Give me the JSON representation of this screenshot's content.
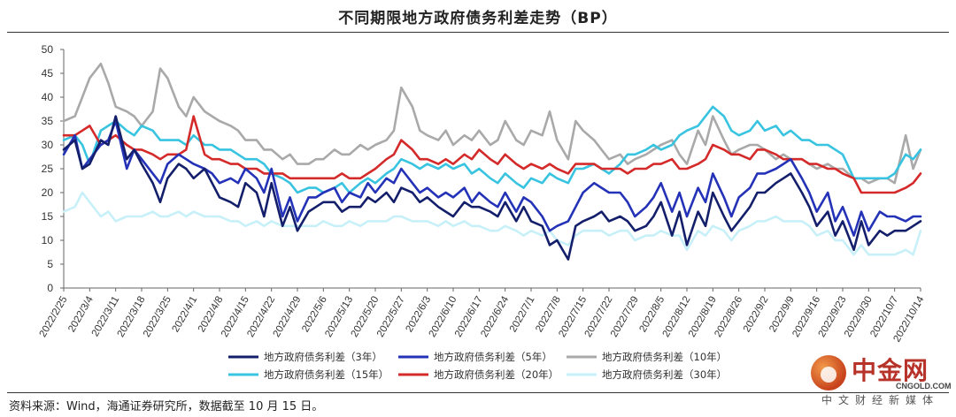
{
  "header": {
    "title": "不同期限地方政府债务利差走势（BP）"
  },
  "footer": {
    "source": "资料来源：Wind，海通证券研究所，数据截至 10 月 15 日。"
  },
  "watermark": {
    "name": "中金网",
    "domain": "CNGOLD.COM",
    "tagline": "中文财经新媒体"
  },
  "colors": {
    "s3": "#141f6b",
    "s5": "#2432b8",
    "s10": "#a9a9a9",
    "s15": "#38c4e0",
    "s20": "#d42a2a",
    "s30": "#c8f0f8"
  },
  "chart_data": {
    "type": "line",
    "title": "不同期限地方政府债务利差走势（BP）",
    "xlabel": "",
    "ylabel": "",
    "ylim": [
      0,
      50
    ],
    "yticks": [
      0,
      5,
      10,
      15,
      20,
      25,
      30,
      35,
      40,
      45,
      50
    ],
    "grid": false,
    "legend_position": "bottom",
    "xticks": [
      "2022/2/25",
      "2022/3/4",
      "2022/3/11",
      "2022/3/18",
      "2022/3/25",
      "2022/4/1",
      "2022/4/8",
      "2022/4/15",
      "2022/4/22",
      "2022/4/29",
      "2022/5/6",
      "2022/5/13",
      "2022/5/20",
      "2022/5/27",
      "2022/6/3",
      "2022/6/10",
      "2022/6/17",
      "2022/6/24",
      "2022/7/1",
      "2022/7/8",
      "2022/7/15",
      "2022/7/22",
      "2022/7/29",
      "2022/8/5",
      "2022/8/12",
      "2022/8/19",
      "2022/8/26",
      "2022/9/2",
      "2022/9/9",
      "2022/9/16",
      "2022/9/23",
      "2022/9/30",
      "2022/10/7",
      "2022/10/14"
    ],
    "x": [
      "2022/2/25",
      "2022/2/28",
      "2022/3/2",
      "2022/3/4",
      "2022/3/7",
      "2022/3/9",
      "2022/3/11",
      "2022/3/14",
      "2022/3/16",
      "2022/3/18",
      "2022/3/21",
      "2022/3/23",
      "2022/3/25",
      "2022/3/28",
      "2022/3/30",
      "2022/4/1",
      "2022/4/4",
      "2022/4/6",
      "2022/4/8",
      "2022/4/11",
      "2022/4/13",
      "2022/4/15",
      "2022/4/18",
      "2022/4/20",
      "2022/4/22",
      "2022/4/25",
      "2022/4/27",
      "2022/4/29",
      "2022/5/2",
      "2022/5/4",
      "2022/5/6",
      "2022/5/9",
      "2022/5/11",
      "2022/5/13",
      "2022/5/16",
      "2022/5/18",
      "2022/5/20",
      "2022/5/23",
      "2022/5/25",
      "2022/5/27",
      "2022/5/30",
      "2022/6/1",
      "2022/6/3",
      "2022/6/6",
      "2022/6/8",
      "2022/6/10",
      "2022/6/13",
      "2022/6/15",
      "2022/6/17",
      "2022/6/20",
      "2022/6/22",
      "2022/6/24",
      "2022/6/27",
      "2022/6/29",
      "2022/7/1",
      "2022/7/4",
      "2022/7/6",
      "2022/7/8",
      "2022/7/11",
      "2022/7/13",
      "2022/7/15",
      "2022/7/18",
      "2022/7/20",
      "2022/7/22",
      "2022/7/25",
      "2022/7/27",
      "2022/7/29",
      "2022/8/1",
      "2022/8/3",
      "2022/8/5",
      "2022/8/8",
      "2022/8/10",
      "2022/8/12",
      "2022/8/15",
      "2022/8/17",
      "2022/8/19",
      "2022/8/22",
      "2022/8/24",
      "2022/8/26",
      "2022/8/29",
      "2022/8/31",
      "2022/9/2",
      "2022/9/5",
      "2022/9/7",
      "2022/9/9",
      "2022/9/12",
      "2022/9/14",
      "2022/9/16",
      "2022/9/19",
      "2022/9/21",
      "2022/9/23",
      "2022/9/26",
      "2022/9/28",
      "2022/9/30",
      "2022/10/3",
      "2022/10/5",
      "2022/10/7",
      "2022/10/10",
      "2022/10/12",
      "2022/10/14"
    ],
    "series": [
      {
        "name": "地方政府债务利差（3年）",
        "color": "#141f6b",
        "values": [
          29,
          31,
          25,
          26,
          31,
          30,
          36,
          27,
          29,
          26,
          22,
          18,
          23,
          26,
          25,
          23,
          25,
          22,
          19,
          18,
          17,
          22,
          20,
          15,
          22,
          13,
          17,
          12,
          16,
          17,
          18,
          18,
          16,
          17,
          17,
          19,
          18,
          20,
          18,
          21,
          20,
          18,
          19,
          17,
          16,
          15,
          18,
          17,
          17,
          16,
          15,
          18,
          14,
          17,
          14,
          13,
          9,
          10,
          6,
          13,
          14,
          15,
          16,
          14,
          15,
          14,
          12,
          13,
          15,
          18,
          11,
          16,
          9,
          16,
          13,
          20,
          15,
          12,
          14,
          17,
          20,
          20,
          22,
          23,
          24,
          20,
          17,
          13,
          16,
          11,
          14,
          8,
          14,
          9,
          12,
          11,
          12,
          12,
          13,
          14
        ]
      },
      {
        "name": "地方政府债务利差（5年）",
        "color": "#2432b8",
        "values": [
          28,
          32,
          25,
          27,
          30,
          31,
          35,
          25,
          29,
          27,
          24,
          22,
          26,
          28,
          27,
          26,
          25,
          24,
          22,
          23,
          22,
          25,
          23,
          20,
          25,
          15,
          19,
          14,
          19,
          19,
          20,
          21,
          18,
          20,
          19,
          22,
          20,
          23,
          22,
          25,
          22,
          20,
          21,
          19,
          20,
          19,
          21,
          18,
          20,
          18,
          17,
          20,
          16,
          19,
          18,
          15,
          12,
          13,
          14,
          17,
          20,
          22,
          21,
          20,
          20,
          18,
          15,
          17,
          19,
          22,
          16,
          20,
          15,
          21,
          18,
          24,
          19,
          15,
          19,
          21,
          24,
          24,
          25,
          26,
          27,
          23,
          20,
          16,
          20,
          14,
          17,
          11,
          16,
          12,
          16,
          15,
          15,
          14,
          15,
          15
        ]
      },
      {
        "name": "地方政府债务利差（10年）",
        "color": "#a9a9a9",
        "values": [
          35,
          36,
          40,
          44,
          47,
          43,
          38,
          37,
          36,
          34,
          37,
          46,
          44,
          38,
          36,
          40,
          37,
          36,
          35,
          34,
          33,
          31,
          31,
          29,
          29,
          27,
          28,
          26,
          26,
          27,
          27,
          29,
          28,
          28,
          30,
          29,
          30,
          31,
          33,
          42,
          38,
          33,
          32,
          31,
          33,
          30,
          32,
          31,
          33,
          30,
          31,
          35,
          31,
          30,
          33,
          32,
          37,
          31,
          27,
          35,
          33,
          31,
          29,
          27,
          28,
          26,
          27,
          28,
          29,
          30,
          31,
          28,
          26,
          33,
          30,
          36,
          31,
          28,
          29,
          30,
          30,
          29,
          27,
          28,
          27,
          27,
          26,
          25,
          26,
          25,
          25,
          23,
          23,
          22,
          23,
          23,
          22,
          32,
          25,
          29
        ]
      },
      {
        "name": "地方政府债务利差（15年）",
        "color": "#38c4e0",
        "values": [
          31,
          32,
          30,
          26,
          33,
          34,
          35,
          33,
          32,
          34,
          33,
          31,
          31,
          31,
          30,
          32,
          30,
          30,
          29,
          29,
          28,
          27,
          27,
          26,
          24,
          23,
          22,
          20,
          21,
          21,
          20,
          21,
          22,
          20,
          22,
          23,
          22,
          24,
          25,
          27,
          26,
          25,
          26,
          25,
          26,
          25,
          26,
          24,
          25,
          23,
          22,
          24,
          22,
          21,
          23,
          22,
          24,
          23,
          22,
          25,
          25,
          26,
          25,
          24,
          26,
          28,
          28,
          29,
          30,
          29,
          30,
          32,
          33,
          34,
          36,
          38,
          36,
          33,
          32,
          33,
          35,
          33,
          34,
          32,
          33,
          31,
          31,
          30,
          30,
          29,
          28,
          23,
          23,
          23,
          23,
          23,
          24,
          28,
          27,
          29
        ]
      },
      {
        "name": "地方政府债务利差（20年）",
        "color": "#d42a2a",
        "values": [
          32,
          32,
          33,
          34,
          30,
          31,
          32,
          30,
          29,
          29,
          28,
          27,
          28,
          28,
          29,
          36,
          28,
          27,
          27,
          26,
          26,
          25,
          25,
          24,
          24,
          24,
          23,
          23,
          23,
          23,
          23,
          23,
          24,
          23,
          23,
          24,
          25,
          27,
          28,
          31,
          29,
          27,
          27,
          26,
          27,
          26,
          28,
          27,
          29,
          27,
          26,
          28,
          26,
          25,
          26,
          25,
          26,
          25,
          24,
          26,
          26,
          26,
          25,
          25,
          25,
          24,
          25,
          25,
          26,
          26,
          27,
          25,
          25,
          26,
          27,
          30,
          29,
          28,
          28,
          27,
          29,
          29,
          28,
          27,
          27,
          27,
          26,
          26,
          25,
          25,
          24,
          23,
          20,
          20,
          20,
          20,
          20,
          21,
          22,
          24
        ]
      },
      {
        "name": "地方政府债务利差（30年）",
        "color": "#c8f0f8",
        "values": [
          16,
          17,
          20,
          18,
          15,
          16,
          14,
          15,
          15,
          15,
          16,
          15,
          15,
          16,
          15,
          16,
          15,
          15,
          15,
          14,
          14,
          13,
          14,
          13,
          14,
          13,
          13,
          13,
          13,
          13,
          14,
          13,
          13,
          14,
          13,
          14,
          14,
          14,
          15,
          15,
          14,
          14,
          14,
          13,
          14,
          13,
          14,
          13,
          13,
          12,
          12,
          13,
          12,
          11,
          12,
          11,
          12,
          10,
          9,
          11,
          12,
          12,
          12,
          11,
          12,
          12,
          10,
          11,
          11,
          12,
          11,
          11,
          8,
          12,
          11,
          13,
          12,
          10,
          12,
          13,
          14,
          14,
          15,
          14,
          14,
          14,
          13,
          11,
          12,
          10,
          10,
          7,
          9,
          7,
          7,
          7,
          7,
          8,
          7,
          12
        ]
      }
    ]
  }
}
